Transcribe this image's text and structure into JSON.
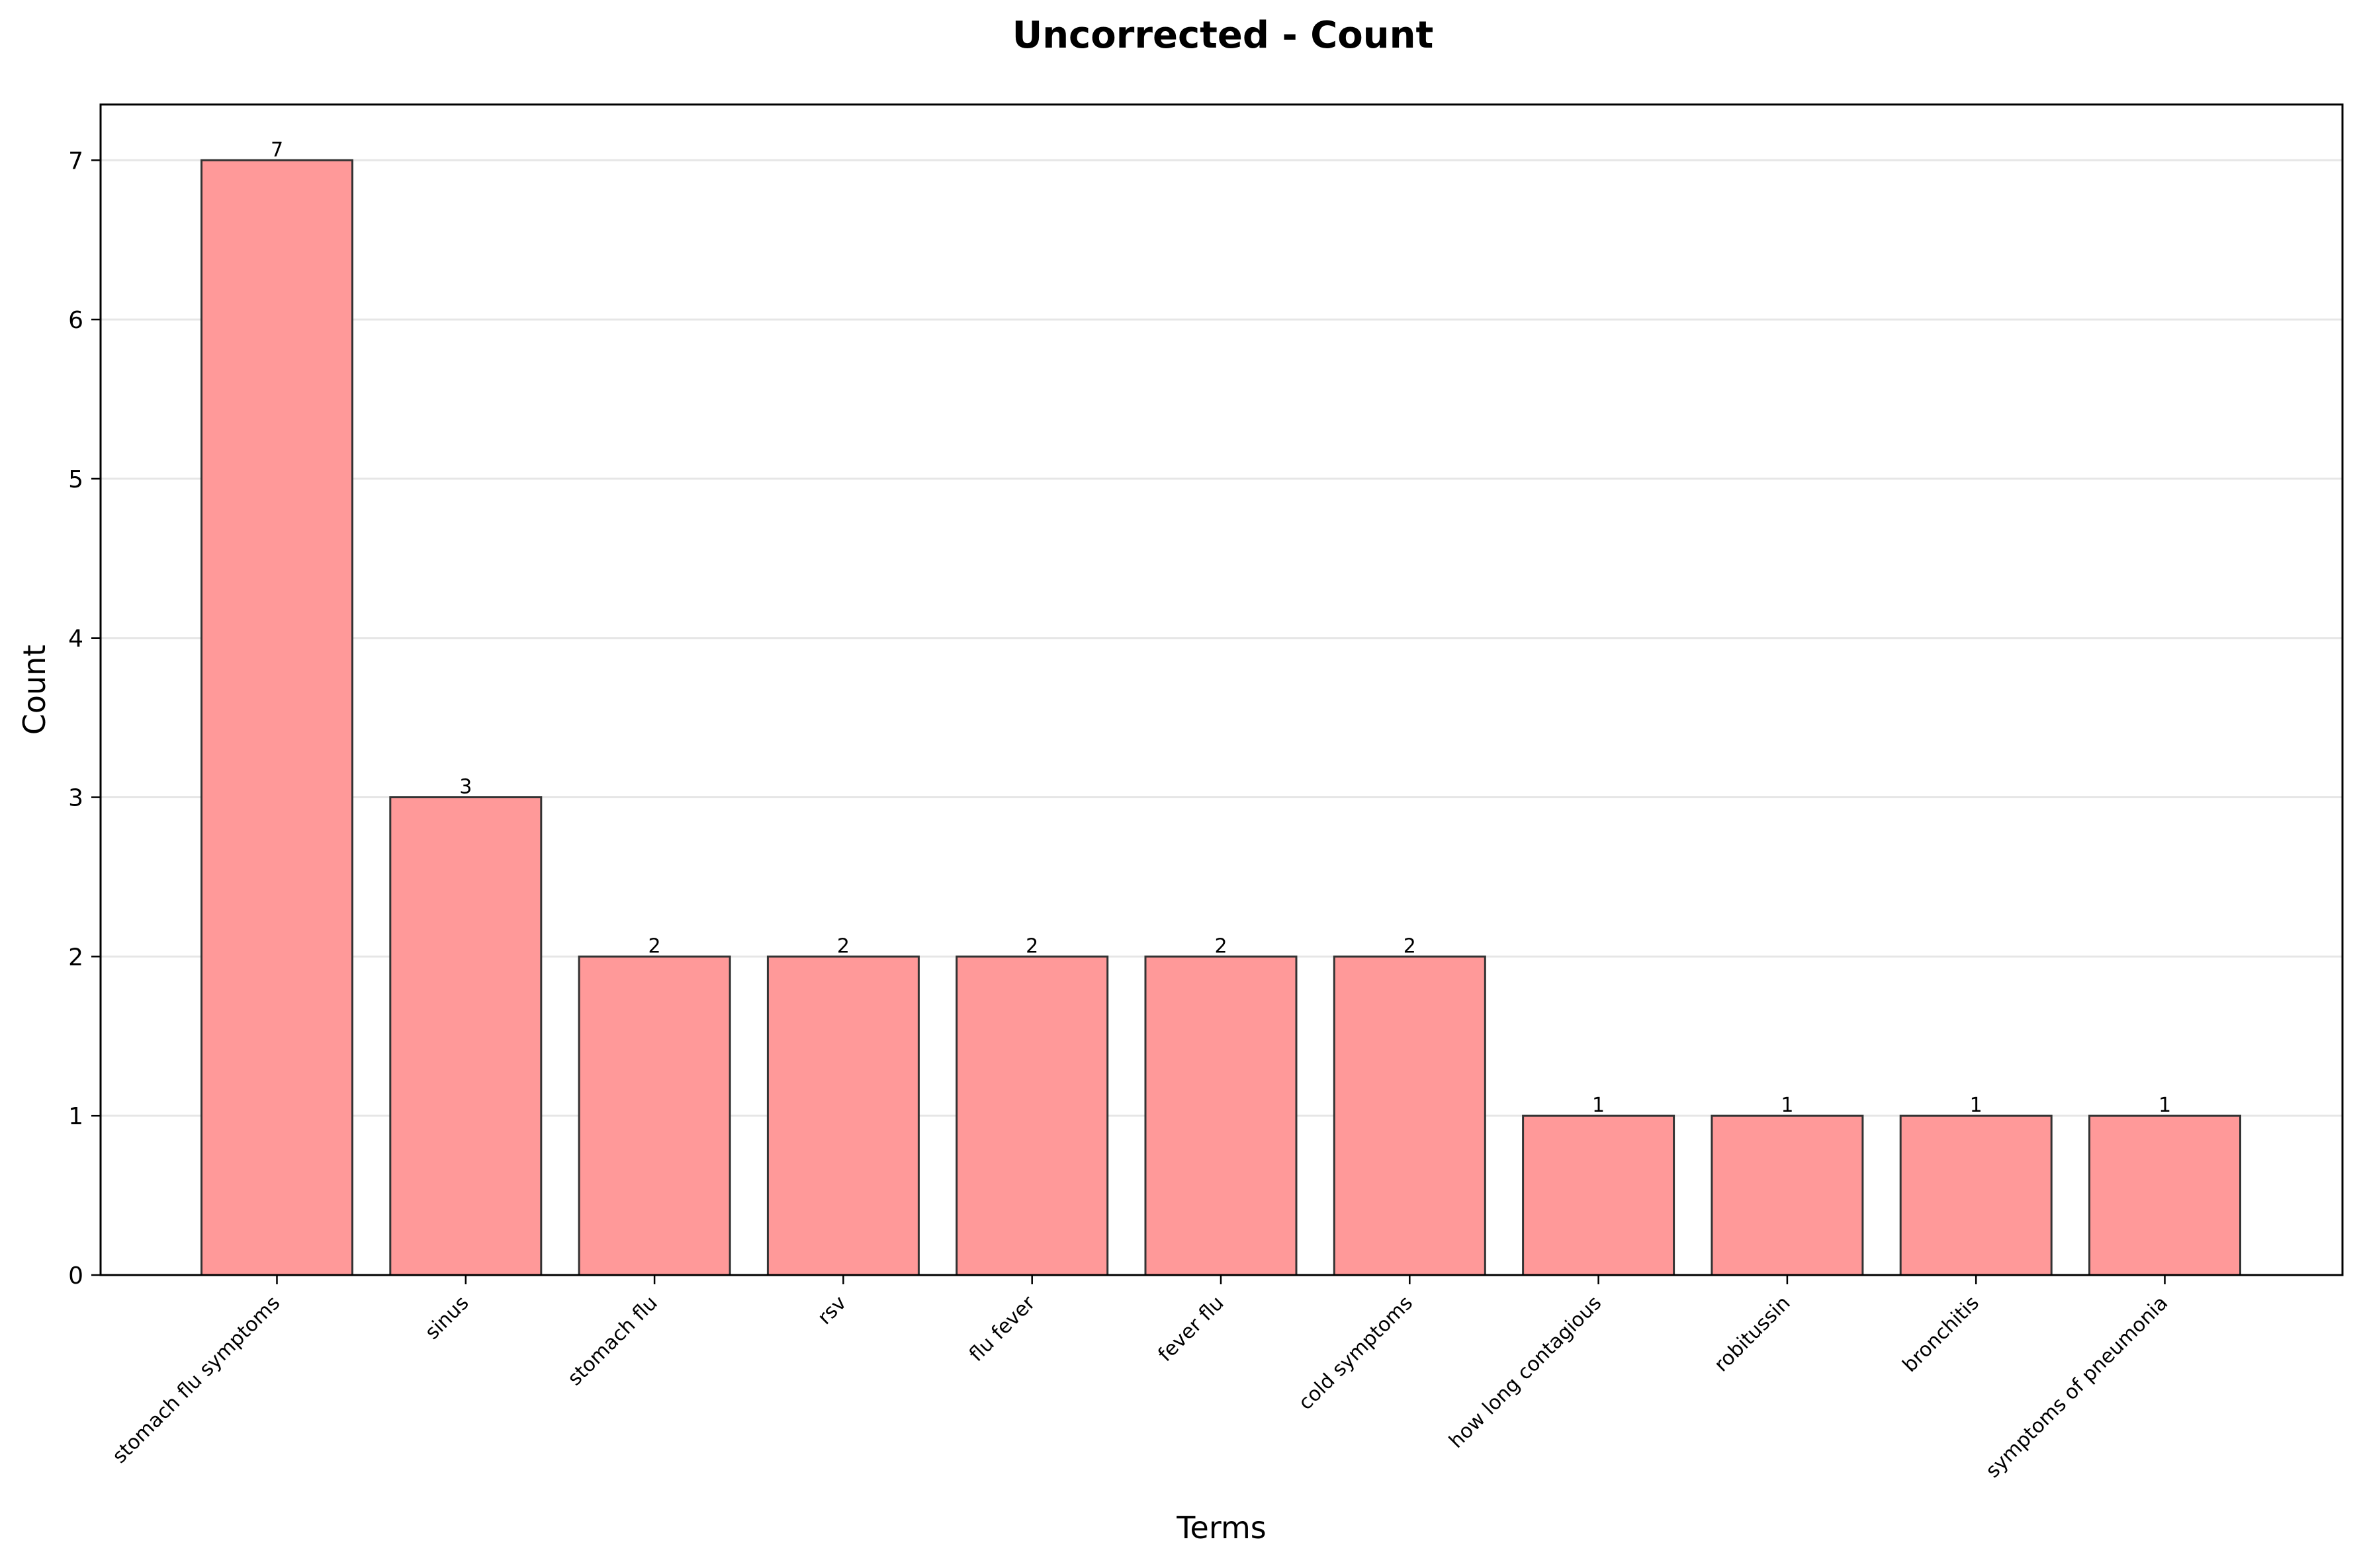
{
  "chart_data": {
    "type": "bar",
    "title": "Uncorrected - Count",
    "xlabel": "Terms",
    "ylabel": "Count",
    "categories": [
      "stomach flu symptoms",
      "sinus",
      "stomach flu",
      "rsv",
      "flu fever",
      "fever flu",
      "cold symptoms",
      "how long contagious",
      "robitussin",
      "bronchitis",
      "symptoms of pneumonia"
    ],
    "values": [
      7,
      3,
      2,
      2,
      2,
      2,
      2,
      1,
      1,
      1,
      1
    ],
    "data_labels": [
      "7",
      "3",
      "2",
      "2",
      "2",
      "2",
      "2",
      "1",
      "1",
      "1",
      "1"
    ],
    "yticks": [
      0,
      1,
      2,
      3,
      4,
      5,
      6,
      7
    ],
    "ylim": [
      0,
      7.35
    ],
    "grid": "y",
    "colors": {
      "bar_fill": "#ff9999",
      "bar_edge": "#333333",
      "grid": "#e6e6e6"
    }
  }
}
